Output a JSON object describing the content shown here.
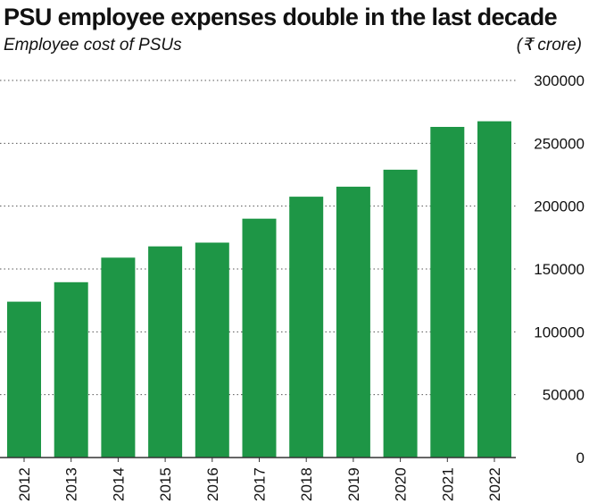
{
  "header": {
    "title": "PSU employee expenses double in the last decade",
    "subtitle": "Employee cost of PSUs",
    "unit": "(₹ crore)"
  },
  "colors": {
    "bar": "#1e9646",
    "grid": "#555555",
    "axis": "#333333"
  },
  "chart_data": {
    "type": "bar",
    "title": "PSU employee expenses double in the last decade",
    "subtitle": "Employee cost of PSUs",
    "ylabel": "(₹ crore)",
    "xlabel": "",
    "categories": [
      "2012",
      "2013",
      "2014",
      "2015",
      "2016",
      "2017",
      "2018",
      "2019",
      "2020",
      "2021",
      "2022"
    ],
    "values": [
      124000,
      139500,
      159000,
      168000,
      171000,
      190000,
      207500,
      215500,
      229000,
      263000,
      267500
    ],
    "ylim": [
      0,
      300000
    ],
    "yticks": [
      0,
      50000,
      100000,
      150000,
      200000,
      250000,
      300000
    ],
    "ytick_labels": [
      "0",
      "50000",
      "100000",
      "150000",
      "200000",
      "250000",
      "300000"
    ],
    "grid": true,
    "axis_side": "right"
  }
}
